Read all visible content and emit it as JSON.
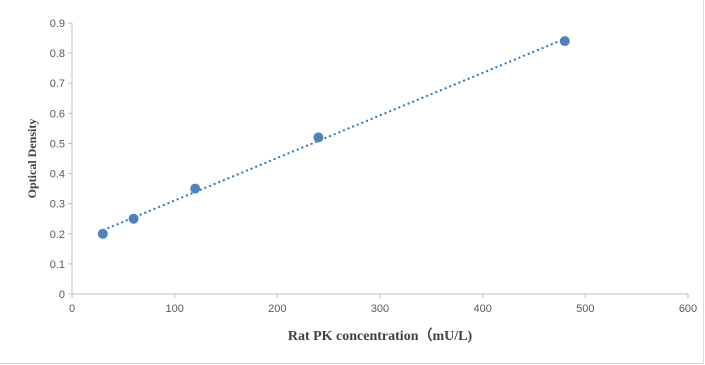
{
  "chart_data": {
    "type": "scatter",
    "xlabel": "Rat PK concentration（mU/L)",
    "ylabel": "Optical Density",
    "xlim": [
      0,
      600
    ],
    "ylim": [
      0,
      0.9
    ],
    "x_ticks": [
      "0",
      "100",
      "200",
      "300",
      "400",
      "500",
      "600"
    ],
    "y_ticks": [
      "0",
      "0.1",
      "0.2",
      "0.3",
      "0.4",
      "0.5",
      "0.6",
      "0.7",
      "0.8",
      "0.9"
    ],
    "series": [
      {
        "x": [
          30,
          60,
          120,
          240,
          480
        ],
        "y": [
          0.2,
          0.25,
          0.35,
          0.52,
          0.84
        ],
        "marker_color": "#4F81BD",
        "trendline": {
          "type": "linear",
          "style": "dotted",
          "color": "#2E75B6"
        }
      }
    ],
    "grid": false,
    "legend": "none"
  }
}
